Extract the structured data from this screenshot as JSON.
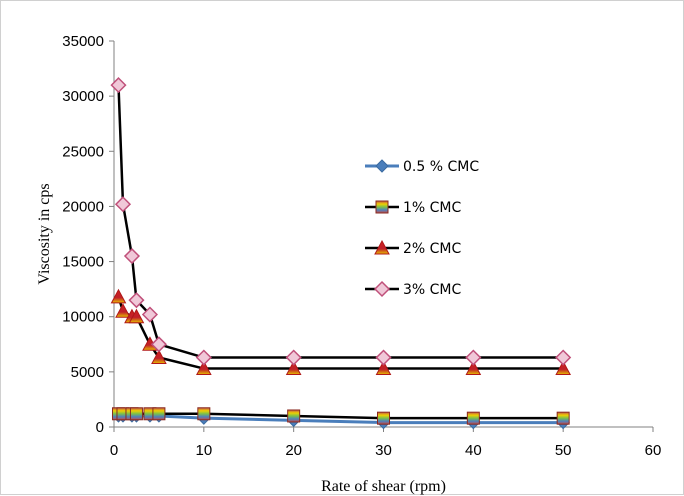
{
  "chart_data": {
    "type": "line",
    "title": "",
    "xlabel": "Rate of shear (rpm)",
    "ylabel": "Viscosity in cps",
    "xlim": [
      0,
      60
    ],
    "ylim": [
      0,
      35000
    ],
    "xticks": [
      0,
      10,
      20,
      30,
      40,
      50,
      60
    ],
    "yticks": [
      0,
      5000,
      10000,
      15000,
      20000,
      25000,
      30000,
      35000
    ],
    "grid": false,
    "legend_position": "right",
    "x": [
      0.5,
      1,
      2,
      2.5,
      4,
      5,
      10,
      20,
      30,
      40,
      50
    ],
    "series": [
      {
        "name": "0.5 % CMC",
        "marker": "diamond",
        "color": "#4a7ebb",
        "values": [
          1000,
          1000,
          1000,
          1000,
          1000,
          1000,
          800,
          600,
          400,
          400,
          400
        ]
      },
      {
        "name": "1% CMC",
        "marker": "square",
        "color": "#000000",
        "values": [
          1200,
          1200,
          1200,
          1200,
          1200,
          1200,
          1200,
          1000,
          800,
          800,
          800
        ]
      },
      {
        "name": "2% CMC",
        "marker": "triangle",
        "color": "#000000",
        "values": [
          11800,
          10500,
          10000,
          10000,
          7500,
          6300,
          5300,
          5300,
          5300,
          5300,
          5300
        ]
      },
      {
        "name": "3% CMC",
        "marker": "diamond-pink",
        "color": "#000000",
        "values": [
          31000,
          20200,
          15500,
          11500,
          10200,
          7500,
          6300,
          6300,
          6300,
          6300,
          6300
        ]
      }
    ]
  }
}
